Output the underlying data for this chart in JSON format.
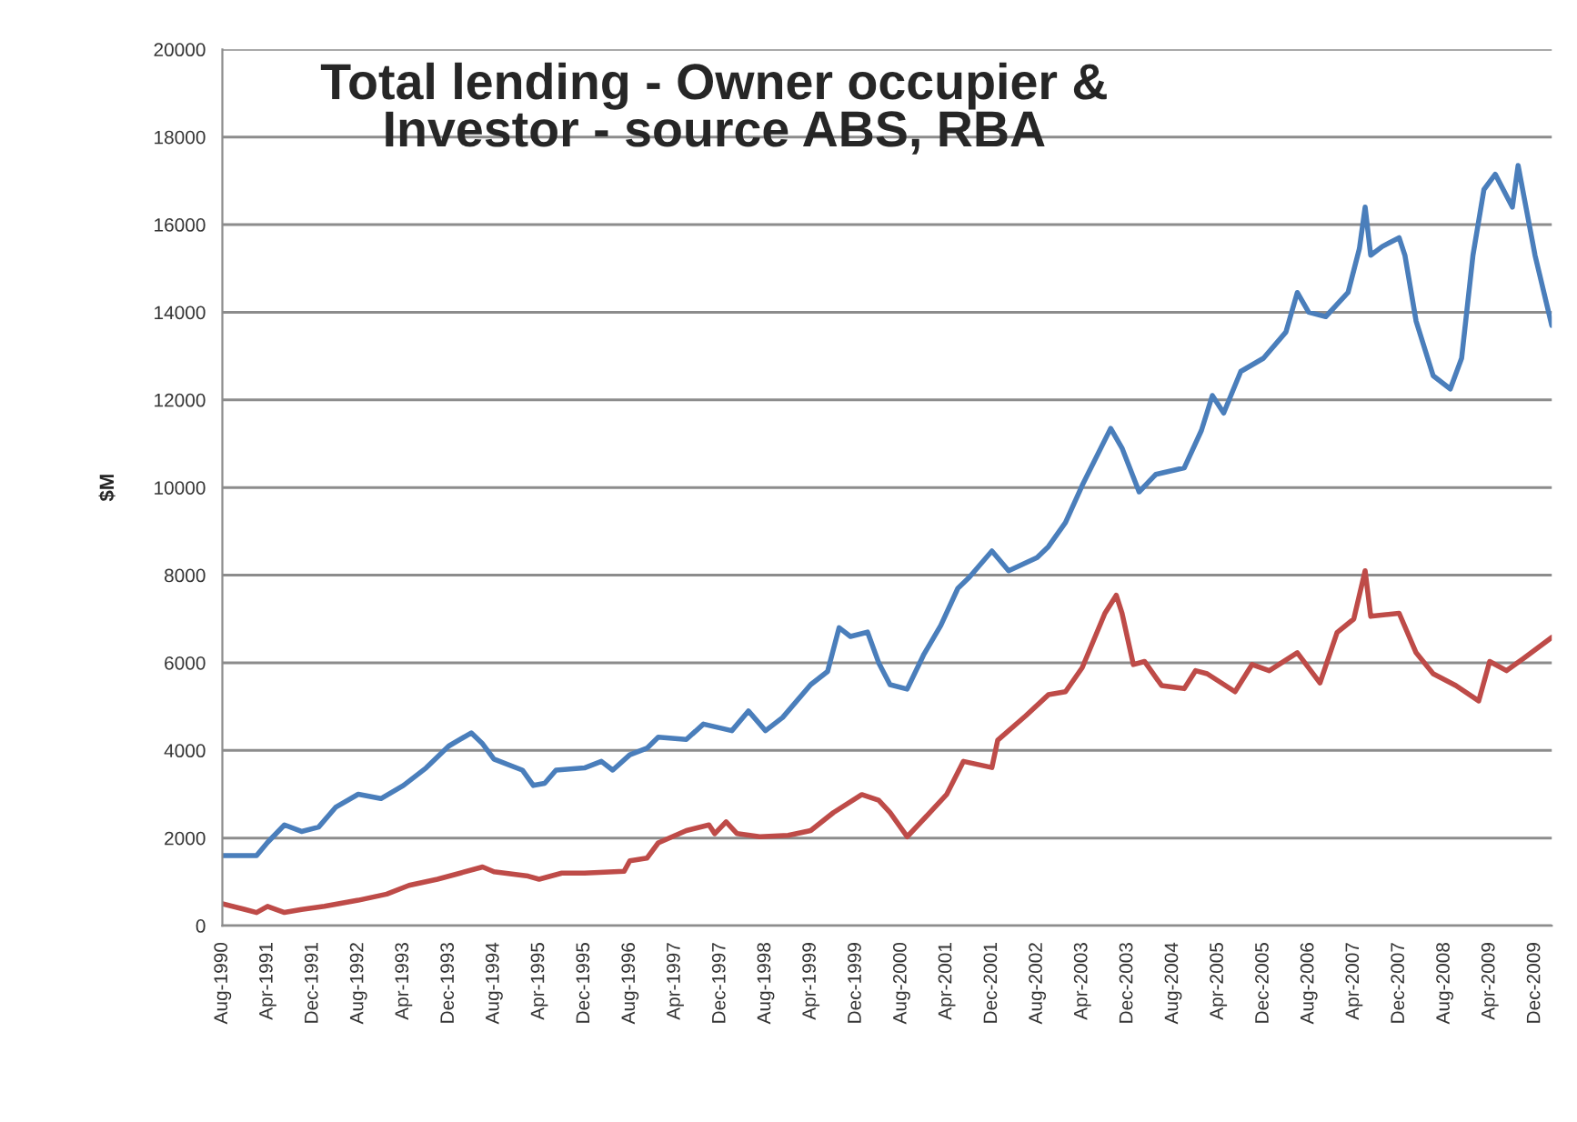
{
  "chart_data": {
    "type": "line",
    "title": "Total lending - Owner occupier &\nInvestor - source ABS, RBA",
    "ylabel": "$M",
    "series": [
      {
        "color": "#4a7ebb",
        "x": [
          "1990-08",
          "1991-02",
          "1991-04",
          "1991-07",
          "1991-10",
          "1992-01",
          "1992-04",
          "1992-08",
          "1992-12",
          "1993-04",
          "1993-08",
          "1993-12",
          "1994-04",
          "1994-06",
          "1994-08",
          "1995-01",
          "1995-03",
          "1995-05",
          "1995-07",
          "1995-12",
          "1996-03",
          "1996-05",
          "1996-08",
          "1996-11",
          "1997-01",
          "1997-06",
          "1997-09",
          "1998-02",
          "1998-05",
          "1998-08",
          "1998-11",
          "1999-04",
          "1999-07",
          "1999-09",
          "1999-11",
          "2000-02",
          "2000-04",
          "2000-06",
          "2000-09",
          "2000-12",
          "2001-03",
          "2001-06",
          "2001-08",
          "2001-12",
          "2002-03",
          "2002-08",
          "2002-10",
          "2003-01",
          "2003-04",
          "2003-09",
          "2003-11",
          "2004-02",
          "2004-05",
          "2004-10",
          "2005-01",
          "2005-03",
          "2005-05",
          "2005-08",
          "2005-12",
          "2006-04",
          "2006-06",
          "2006-08",
          "2006-11",
          "2007-03",
          "2007-05",
          "2007-06",
          "2007-07",
          "2007-09",
          "2007-12",
          "2008-01",
          "2008-03",
          "2008-06",
          "2008-09",
          "2008-11",
          "2009-01",
          "2009-03",
          "2009-05",
          "2009-08",
          "2009-09",
          "2009-12",
          "2010-03"
        ],
        "values": [
          1600,
          1600,
          1900,
          2300,
          2150,
          2250,
          2700,
          3000,
          2900,
          3200,
          3600,
          4100,
          4400,
          4150,
          3800,
          3550,
          3200,
          3250,
          3550,
          3600,
          3750,
          3550,
          3900,
          4050,
          4300,
          4250,
          4600,
          4450,
          4900,
          4450,
          4750,
          5500,
          5800,
          6800,
          6600,
          6700,
          6000,
          5500,
          5400,
          6200,
          6850,
          7700,
          7950,
          8550,
          8100,
          8400,
          8650,
          9200,
          10050,
          11350,
          10900,
          9900,
          10300,
          10450,
          11300,
          12100,
          11700,
          12650,
          12950,
          13550,
          14450,
          14000,
          13900,
          14450,
          15450,
          16400,
          15300,
          15500,
          15700,
          15300,
          13800,
          12550,
          12250,
          12950,
          15300,
          16800,
          17150,
          16400,
          17350,
          15300,
          13700
        ]
      },
      {
        "color": "#be4b48",
        "x": [
          "1990-08",
          "1990-12",
          "1991-02",
          "1991-04",
          "1991-07",
          "1991-10",
          "1992-02",
          "1992-08",
          "1993-01",
          "1993-05",
          "1993-10",
          "1994-02",
          "1994-06",
          "1994-08",
          "1995-02",
          "1995-04",
          "1995-08",
          "1995-12",
          "1996-07",
          "1996-08",
          "1996-11",
          "1997-01",
          "1997-06",
          "1997-10",
          "1997-11",
          "1998-01",
          "1998-03",
          "1998-07",
          "1998-12",
          "1999-04",
          "1999-08",
          "2000-01",
          "2000-04",
          "2000-06",
          "2000-09",
          "2000-12",
          "2001-04",
          "2001-07",
          "2001-12",
          "2002-01",
          "2002-06",
          "2002-10",
          "2003-01",
          "2003-04",
          "2003-08",
          "2003-10",
          "2003-11",
          "2004-01",
          "2004-03",
          "2004-06",
          "2004-10",
          "2004-12",
          "2005-02",
          "2005-07",
          "2005-10",
          "2006-01",
          "2006-06",
          "2006-10",
          "2007-01",
          "2007-04",
          "2007-06",
          "2007-07",
          "2007-12",
          "2008-03",
          "2008-06",
          "2008-10",
          "2009-02",
          "2009-04",
          "2009-07",
          "2009-10",
          "2010-03"
        ],
        "values": [
          500,
          370,
          300,
          440,
          300,
          370,
          440,
          580,
          720,
          920,
          1060,
          1200,
          1340,
          1230,
          1130,
          1060,
          1200,
          1200,
          1240,
          1480,
          1540,
          1890,
          2170,
          2300,
          2100,
          2370,
          2100,
          2030,
          2060,
          2170,
          2580,
          2990,
          2860,
          2580,
          2030,
          2440,
          2990,
          3750,
          3610,
          4230,
          4790,
          5270,
          5340,
          5890,
          7130,
          7540,
          7130,
          5960,
          6030,
          5480,
          5410,
          5820,
          5750,
          5340,
          5960,
          5820,
          6230,
          5540,
          6690,
          7000,
          8100,
          7060,
          7130,
          6230,
          5750,
          5480,
          5130,
          6030,
          5820,
          6100,
          6580
        ]
      }
    ],
    "xlim": [
      "1990-08",
      "2010-03"
    ],
    "xticks": [
      {
        "value": "1990-08",
        "label": "Aug-1990"
      },
      {
        "value": "1991-04",
        "label": "Apr-1991"
      },
      {
        "value": "1991-12",
        "label": "Dec-1991"
      },
      {
        "value": "1992-08",
        "label": "Aug-1992"
      },
      {
        "value": "1993-04",
        "label": "Apr-1993"
      },
      {
        "value": "1993-12",
        "label": "Dec-1993"
      },
      {
        "value": "1994-08",
        "label": "Aug-1994"
      },
      {
        "value": "1995-04",
        "label": "Apr-1995"
      },
      {
        "value": "1995-12",
        "label": "Dec-1995"
      },
      {
        "value": "1996-08",
        "label": "Aug-1996"
      },
      {
        "value": "1997-04",
        "label": "Apr-1997"
      },
      {
        "value": "1997-12",
        "label": "Dec-1997"
      },
      {
        "value": "1998-08",
        "label": "Aug-1998"
      },
      {
        "value": "1999-04",
        "label": "Apr-1999"
      },
      {
        "value": "1999-12",
        "label": "Dec-1999"
      },
      {
        "value": "2000-08",
        "label": "Aug-2000"
      },
      {
        "value": "2001-04",
        "label": "Apr-2001"
      },
      {
        "value": "2001-12",
        "label": "Dec-2001"
      },
      {
        "value": "2002-08",
        "label": "Aug-2002"
      },
      {
        "value": "2003-04",
        "label": "Apr-2003"
      },
      {
        "value": "2003-12",
        "label": "Dec-2003"
      },
      {
        "value": "2004-08",
        "label": "Aug-2004"
      },
      {
        "value": "2005-04",
        "label": "Apr-2005"
      },
      {
        "value": "2005-12",
        "label": "Dec-2005"
      },
      {
        "value": "2006-08",
        "label": "Aug-2006"
      },
      {
        "value": "2007-04",
        "label": "Apr-2007"
      },
      {
        "value": "2007-12",
        "label": "Dec-2007"
      },
      {
        "value": "2008-08",
        "label": "Aug-2008"
      },
      {
        "value": "2009-04",
        "label": "Apr-2009"
      },
      {
        "value": "2009-12",
        "label": "Dec-2009"
      }
    ],
    "ylim": [
      0,
      20000
    ],
    "yticks": [
      0,
      2000,
      4000,
      6000,
      8000,
      10000,
      12000,
      14000,
      16000,
      18000,
      20000
    ],
    "grid": "y",
    "marker": "none",
    "line_style": "solid"
  }
}
